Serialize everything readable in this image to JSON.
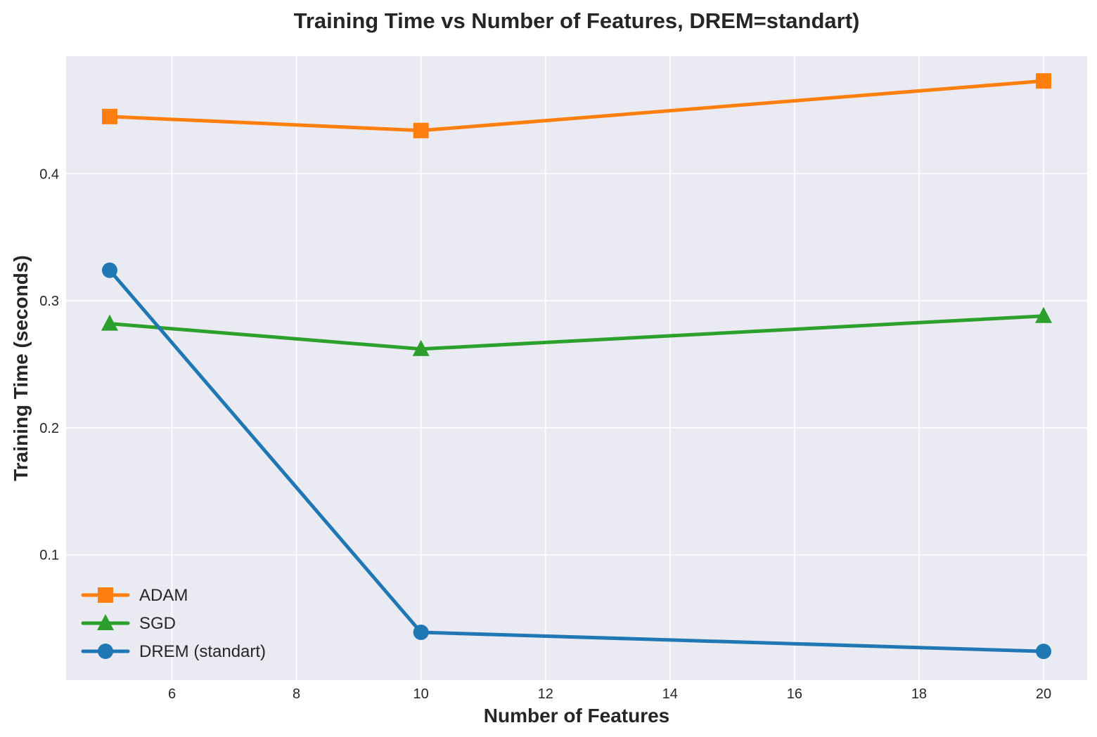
{
  "chart_data": {
    "type": "line",
    "title": "Training Time vs Number of Features, DREM=standart)",
    "xlabel": "Number of Features",
    "ylabel": "Training Time (seconds)",
    "xlim": [
      4.3,
      20.7
    ],
    "ylim": [
      0.0014,
      0.4925
    ],
    "xticks": [
      6,
      8,
      10,
      12,
      14,
      16,
      18,
      20
    ],
    "yticks": [
      0.1,
      0.2,
      0.3,
      0.4
    ],
    "grid": true,
    "legend_position": "lower-left",
    "x": [
      5,
      10,
      20
    ],
    "series": [
      {
        "name": "ADAM",
        "values": [
          0.445,
          0.434,
          0.473
        ],
        "color": "#ff7f0e",
        "marker": "square"
      },
      {
        "name": "SGD",
        "values": [
          0.282,
          0.262,
          0.288
        ],
        "color": "#2ca02c",
        "marker": "triangle"
      },
      {
        "name": "DREM (standart)",
        "values": [
          0.324,
          0.039,
          0.024
        ],
        "color": "#1f77b4",
        "marker": "circle"
      }
    ]
  },
  "colors": {
    "plot_background": "#eaeaf2",
    "grid": "#ffffff",
    "text": "#262626"
  }
}
